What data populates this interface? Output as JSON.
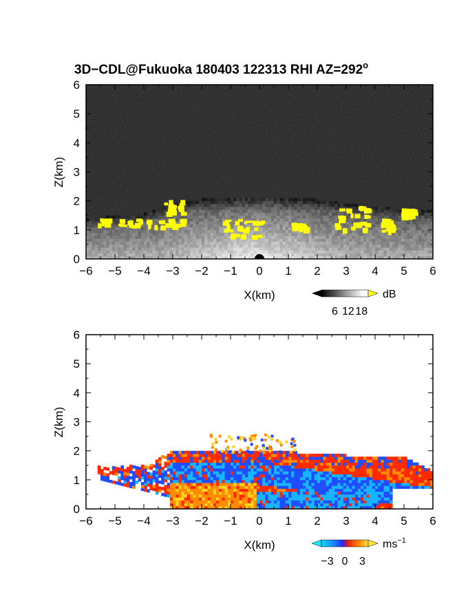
{
  "title": {
    "main": "3D−CDL@Fukuoka 180403 122313 RHI AZ=292",
    "degree": "o"
  },
  "colors": {
    "background_dark": "#141414",
    "frame": "#000000",
    "highlight_yellow": "#ffff00",
    "velocity_blue": "#1f4dff",
    "velocity_cyan": "#19b4ff",
    "velocity_red": "#ff2a00",
    "velocity_orange": "#ff8c00",
    "velocity_yellow": "#ffd21e"
  },
  "chart_data": [
    {
      "type": "heatmap",
      "quantity": "backscatter intensity",
      "xlabel": "X(km)",
      "ylabel": "Z(km)",
      "xlim": [
        -6,
        6
      ],
      "ylim": [
        0,
        6
      ],
      "xticks": [
        -6,
        -5,
        -4,
        -3,
        -2,
        -1,
        0,
        1,
        2,
        3,
        4,
        5,
        6
      ],
      "yticks": [
        0,
        1,
        2,
        3,
        4,
        5,
        6
      ],
      "grid": false,
      "colorbar": {
        "unit": "dB",
        "ticks": [
          6,
          12,
          18
        ],
        "range": [
          0,
          21
        ],
        "colormap": "grayscale (black to white), yellow above 18"
      },
      "layer_top_km": 2.0,
      "layer_top_km_profile": [
        [
          -6,
          1.3
        ],
        [
          -5.5,
          1.4
        ],
        [
          -4,
          1.5
        ],
        [
          -3,
          1.85
        ],
        [
          -2,
          2.0
        ],
        [
          0,
          2.1
        ],
        [
          2,
          2.0
        ],
        [
          3,
          1.85
        ],
        [
          4.5,
          1.7
        ],
        [
          6,
          1.6
        ]
      ],
      "high_value_regions": [
        {
          "x": [
            -5.6,
            -3.4
          ],
          "z": [
            1.15,
            1.4
          ],
          "value": "> 18 dB"
        },
        {
          "x": [
            -3.3,
            -2.7
          ],
          "z": [
            1.15,
            2.05
          ],
          "value": "> 18 dB"
        },
        {
          "x": [
            -1.4,
            0.1
          ],
          "z": [
            0.8,
            1.4
          ],
          "value": "> 18 dB"
        },
        {
          "x": [
            1.1,
            1.6
          ],
          "z": [
            1.05,
            1.25
          ],
          "value": "> 18 dB"
        },
        {
          "x": [
            2.6,
            3.7
          ],
          "z": [
            1.05,
            1.85
          ],
          "value": "> 18 dB"
        },
        {
          "x": [
            4.2,
            4.6
          ],
          "z": [
            1.0,
            1.4
          ],
          "value": "> 18 dB"
        },
        {
          "x": [
            4.9,
            5.3
          ],
          "z": [
            1.45,
            1.75
          ],
          "value": "> 18 dB"
        }
      ]
    },
    {
      "type": "heatmap",
      "quantity": "radial velocity",
      "xlabel": "X(km)",
      "ylabel": "Z(km)",
      "xlim": [
        -6,
        6
      ],
      "ylim": [
        0,
        6
      ],
      "xticks": [
        -6,
        -5,
        -4,
        -3,
        -2,
        -1,
        0,
        1,
        2,
        3,
        4,
        5,
        6
      ],
      "yticks": [
        0,
        1,
        2,
        3,
        4,
        5,
        6
      ],
      "grid": false,
      "colorbar": {
        "unit": "ms",
        "unit_exponent": "−1",
        "ticks": [
          -3,
          0,
          3
        ],
        "tick_labels": [
          "−3",
          "0",
          "3"
        ],
        "range": [
          -4,
          4
        ],
        "colormap": "cyan-blue (negative) to red-yellow (positive)"
      },
      "echo_top_km_profile": [
        [
          -5.6,
          1.4
        ],
        [
          -4,
          1.45
        ],
        [
          -3,
          1.95
        ],
        [
          -2,
          2.0
        ],
        [
          0,
          2.0
        ],
        [
          2,
          1.85
        ],
        [
          3,
          1.8
        ],
        [
          4,
          1.7
        ],
        [
          5,
          1.75
        ],
        [
          6,
          1.25
        ]
      ],
      "regions": [
        {
          "x": [
            -3,
            -0.2
          ],
          "z": [
            0,
            0.8
          ],
          "velocity": "positive (≈ +3 m/s, orange/yellow)"
        },
        {
          "x": [
            -3.5,
            0.5
          ],
          "z": [
            0.8,
            1.5
          ],
          "velocity": "negative (≈ −2 to −4 m/s, blue/cyan)"
        },
        {
          "x": [
            -3,
            0.5
          ],
          "z": [
            1.5,
            2.0
          ],
          "velocity": "positive (≈ +1 m/s, red)"
        },
        {
          "x": [
            0,
            4
          ],
          "z": [
            0,
            0.6
          ],
          "velocity": "negative (≈ −3 m/s, blue/cyan)"
        },
        {
          "x": [
            0.5,
            4.5
          ],
          "z": [
            0.6,
            1.8
          ],
          "velocity": "mixed positive red and negative blue bands"
        }
      ]
    }
  ]
}
